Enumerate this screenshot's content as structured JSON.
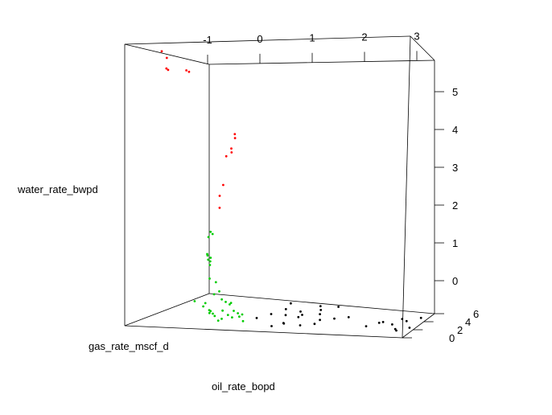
{
  "chart_data": {
    "type": "scatter",
    "title": "",
    "axes": {
      "top": {
        "label": "",
        "ticks": [
          "-1",
          "0",
          "1",
          "2",
          "3"
        ]
      },
      "right": {
        "label": "",
        "ticks": [
          "0",
          "1",
          "2",
          "3",
          "4",
          "5"
        ]
      },
      "depth": {
        "label": "",
        "ticks": [
          "0",
          "2",
          "4",
          "6"
        ]
      }
    },
    "labels": {
      "y": "water_rate_bwpd",
      "x": "gas_rate_mscf_d",
      "z": "oil_rate_bopd"
    },
    "series": [
      {
        "color": "#ff0000",
        "points": [
          [
            -1.95,
            5.45,
            0.3
          ],
          [
            -1.9,
            5.3,
            0.5
          ],
          [
            -1.88,
            5.1,
            0.4
          ],
          [
            -1.9,
            5.05,
            0.6
          ],
          [
            -1.4,
            5.1,
            0.2
          ],
          [
            -1.4,
            5.05,
            0.4
          ],
          [
            -0.4,
            3.85,
            0.3
          ],
          [
            -0.45,
            3.75,
            0.5
          ],
          [
            -0.5,
            3.55,
            0.4
          ],
          [
            -0.55,
            3.45,
            0.6
          ],
          [
            -0.58,
            3.4,
            0.3
          ],
          [
            -0.7,
            2.8,
            0.5
          ],
          [
            -0.72,
            2.6,
            0.3
          ],
          [
            -0.75,
            2.35,
            0.4
          ]
        ]
      },
      {
        "color": "#00cc00",
        "points": [
          [
            -2.1,
            1.4,
            4.5
          ],
          [
            -2.2,
            1.3,
            5.0
          ],
          [
            -2.3,
            0.8,
            5.2
          ],
          [
            -2.25,
            0.75,
            5.0
          ],
          [
            -2.2,
            0.7,
            4.8
          ],
          [
            -2.0,
            1.35,
            4.0
          ],
          [
            -2.15,
            0.45,
            4.6
          ],
          [
            -2.1,
            0.35,
            4.9
          ],
          [
            -1.85,
            1.05,
            3.4
          ],
          [
            -1.8,
            1.1,
            3.2
          ],
          [
            -1.75,
            1.0,
            3.1
          ],
          [
            -1.5,
            0.25,
            2.0
          ],
          [
            -1.2,
            0.1,
            1.5
          ],
          [
            -1.3,
            0.1,
            1.6
          ],
          [
            -1.0,
            0.0,
            1.2
          ],
          [
            -0.9,
            0.05,
            1.1
          ],
          [
            -2.4,
            0.0,
            5.8
          ],
          [
            -2.2,
            0.1,
            5.5
          ],
          [
            -2.0,
            0.0,
            5.0
          ],
          [
            -1.8,
            0.0,
            4.6
          ],
          [
            -1.6,
            0.0,
            4.2
          ],
          [
            -1.4,
            0.1,
            3.6
          ],
          [
            -1.2,
            0.0,
            3.1
          ],
          [
            -1.0,
            0.0,
            2.7
          ],
          [
            -0.8,
            0.0,
            2.1
          ],
          [
            -0.6,
            0.1,
            1.6
          ],
          [
            -0.5,
            0.0,
            1.3
          ],
          [
            -1.5,
            0.05,
            2.4
          ],
          [
            -1.3,
            0.0,
            2.0
          ],
          [
            -2.3,
            0.05,
            4.0
          ],
          [
            -2.0,
            0.0,
            3.6
          ],
          [
            -1.7,
            0.0,
            3.0
          ],
          [
            -1.3,
            0.05,
            2.6
          ],
          [
            -1.1,
            0.0,
            2.3
          ],
          [
            -0.9,
            0.0,
            1.9
          ]
        ]
      },
      {
        "color": "#000000",
        "points": [
          [
            0.3,
            0.0,
            0.6
          ],
          [
            0.5,
            0.05,
            0.8
          ],
          [
            0.4,
            0.0,
            1.2
          ],
          [
            0.8,
            0.0,
            1.0
          ],
          [
            0.6,
            0.1,
            1.6
          ],
          [
            1.0,
            0.0,
            1.4
          ],
          [
            -0.4,
            0.0,
            2.0
          ],
          [
            -0.2,
            0.05,
            2.4
          ],
          [
            0.0,
            0.0,
            2.8
          ],
          [
            0.3,
            0.0,
            3.0
          ],
          [
            0.6,
            0.0,
            3.3
          ],
          [
            0.1,
            0.0,
            3.6
          ],
          [
            -0.3,
            0.0,
            3.9
          ],
          [
            0.4,
            0.0,
            4.1
          ],
          [
            0.7,
            0.05,
            4.4
          ],
          [
            0.2,
            0.0,
            4.8
          ],
          [
            -0.5,
            0.0,
            5.0
          ],
          [
            0.9,
            0.0,
            2.2
          ],
          [
            1.1,
            0.0,
            2.6
          ],
          [
            1.3,
            0.0,
            3.0
          ],
          [
            2.1,
            0.0,
            1.4
          ],
          [
            2.3,
            0.05,
            1.7
          ],
          [
            2.5,
            0.0,
            2.0
          ],
          [
            2.2,
            0.0,
            2.4
          ],
          [
            2.6,
            0.0,
            2.8
          ],
          [
            2.8,
            0.0,
            1.1
          ],
          [
            3.0,
            0.0,
            1.5
          ],
          [
            2.9,
            0.0,
            0.8
          ],
          [
            2.4,
            0.0,
            3.2
          ],
          [
            2.7,
            0.0,
            3.6
          ]
        ]
      }
    ]
  }
}
